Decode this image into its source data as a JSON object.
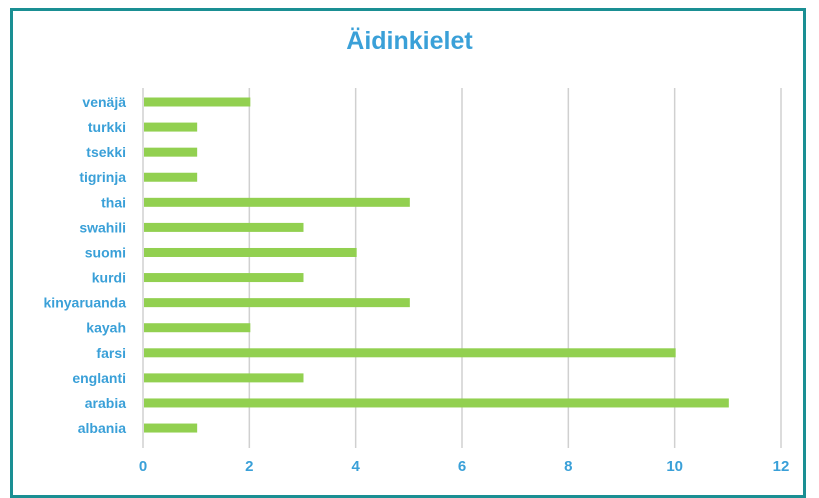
{
  "chart_data": {
    "type": "bar",
    "orientation": "horizontal",
    "title": "Äidinkielet",
    "categories": [
      "venäjä",
      "turkki",
      "tsekki",
      "tigrinja",
      "thai",
      "swahili",
      "suomi",
      "kurdi",
      "kinyaruanda",
      "kayah",
      "farsi",
      "englanti",
      "arabia",
      "albania"
    ],
    "values": [
      2,
      1,
      1,
      1,
      5,
      3,
      4,
      3,
      5,
      2,
      10,
      3,
      11,
      1
    ],
    "xlim": [
      0,
      12
    ],
    "xticks": [
      "0",
      "2",
      "4",
      "6",
      "8",
      "10",
      "12"
    ],
    "grid": "vertical",
    "bar_color": "#92d050",
    "text_color": "#3aa0d8",
    "border_color": "#1a8f93",
    "grid_color": "#d0d0d0"
  }
}
